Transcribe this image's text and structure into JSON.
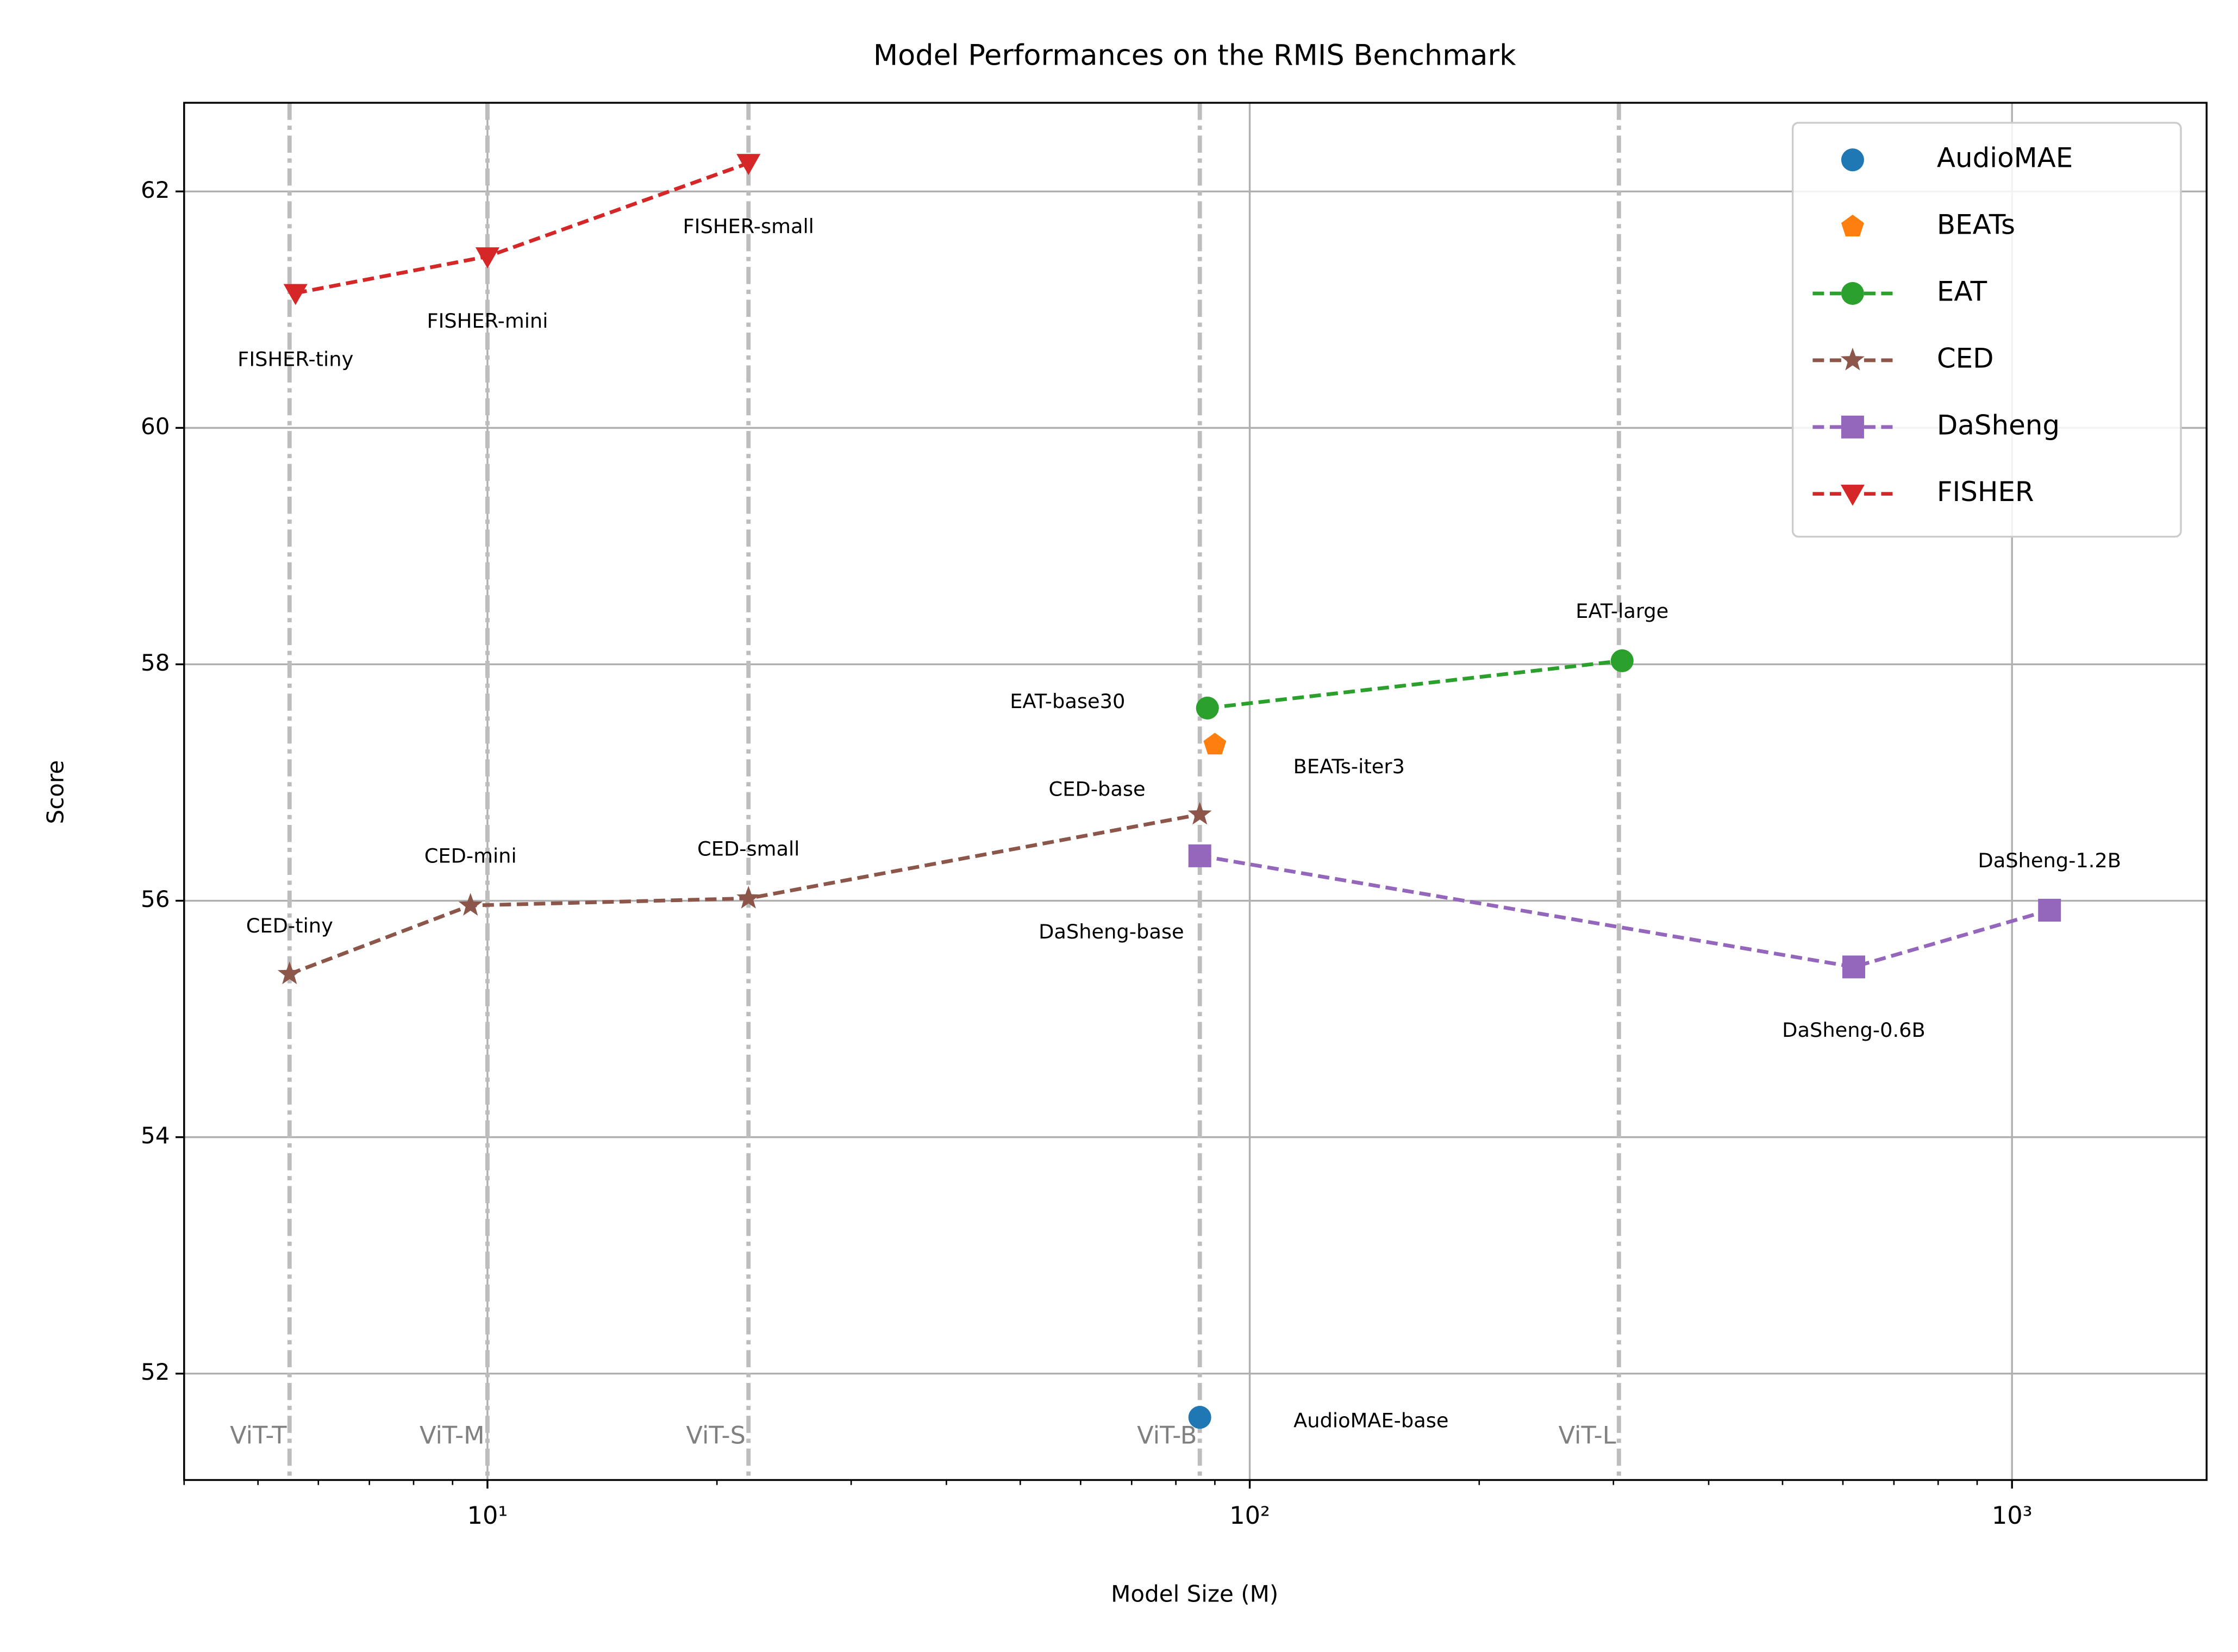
{
  "chart_data": {
    "type": "line",
    "title": "Model Performances on the RMIS Benchmark",
    "x_label": "Model Size (M)",
    "y_label": "Score",
    "xscale": "log",
    "xlim": [
      4,
      1800
    ],
    "ylim": [
      51.1,
      62.75
    ],
    "xticks": [
      {
        "value": 10,
        "label": "10¹"
      },
      {
        "value": 100,
        "label": "10²"
      },
      {
        "value": 1000,
        "label": "10³"
      }
    ],
    "xminorticks": [
      4,
      5,
      6,
      7,
      8,
      9,
      20,
      30,
      40,
      50,
      60,
      70,
      80,
      90,
      200,
      300,
      400,
      500,
      600,
      700,
      800,
      900
    ],
    "yticks": [
      52,
      54,
      56,
      58,
      60,
      62
    ],
    "grid": true,
    "legend": "upper right",
    "reference_lines": [
      {
        "x": 5.5,
        "label": "ViT-T"
      },
      {
        "x": 10,
        "label": "ViT-M"
      },
      {
        "x": 22,
        "label": "ViT-S"
      },
      {
        "x": 86,
        "label": "ViT-B"
      },
      {
        "x": 305,
        "label": "ViT-L"
      }
    ],
    "series": [
      {
        "name": "AudioMAE",
        "color": "#1f77b4",
        "marker": "circle",
        "linestyle": "none",
        "x": [
          86
        ],
        "values": [
          51.63
        ],
        "labels": [
          "AudioMAE-base"
        ]
      },
      {
        "name": "BEATs",
        "color": "#ff7f0e",
        "marker": "pentagon",
        "linestyle": "none",
        "x": [
          90
        ],
        "values": [
          57.32
        ],
        "labels": [
          "BEATs-iter3"
        ]
      },
      {
        "name": "EAT",
        "color": "#2ca02c",
        "marker": "circle",
        "linestyle": "dashed",
        "x": [
          88,
          308
        ],
        "values": [
          57.63,
          58.03
        ],
        "labels": [
          "EAT-base30",
          "EAT-large"
        ]
      },
      {
        "name": "CED",
        "color": "#8c564b",
        "marker": "star",
        "linestyle": "dashed",
        "x": [
          5.5,
          9.5,
          22,
          86
        ],
        "values": [
          55.38,
          55.96,
          56.02,
          56.73
        ],
        "labels": [
          "CED-tiny",
          "CED-mini",
          "CED-small",
          "CED-base"
        ]
      },
      {
        "name": "DaSheng",
        "color": "#9467bd",
        "marker": "square",
        "linestyle": "dashed",
        "x": [
          86,
          620,
          1120
        ],
        "values": [
          56.38,
          55.44,
          55.92
        ],
        "labels": [
          "DaSheng-base",
          "DaSheng-0.6B",
          "DaSheng-1.2B"
        ]
      },
      {
        "name": "FISHER",
        "color": "#d62728",
        "marker": "triangle-down",
        "linestyle": "dashed",
        "x": [
          5.6,
          10,
          22
        ],
        "values": [
          61.14,
          61.45,
          62.24
        ],
        "labels": [
          "FISHER-tiny",
          "FISHER-mini",
          "FISHER-small"
        ]
      }
    ]
  }
}
